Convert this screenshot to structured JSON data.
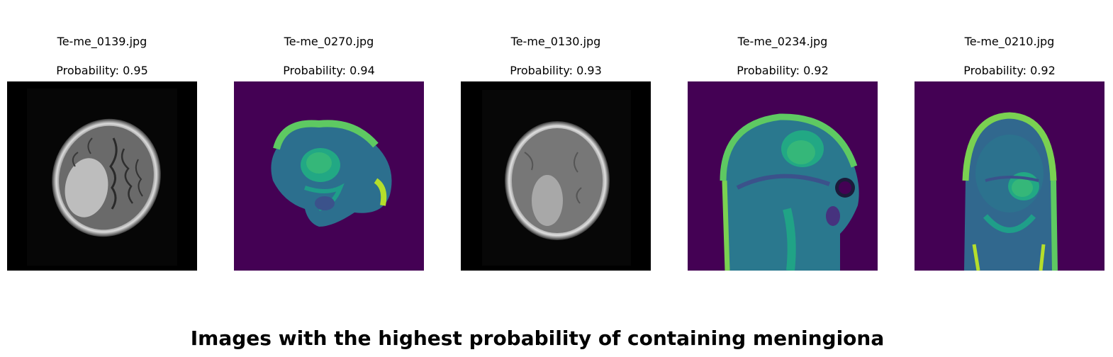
{
  "panels": [
    {
      "filename": "Te-me_0139.jpg",
      "probability_label": "Probability: 0.95",
      "colormap": "gray",
      "view": "axial-upper-a"
    },
    {
      "filename": "Te-me_0270.jpg",
      "probability_label": "Probability: 0.94",
      "colormap": "viridis",
      "view": "oblique"
    },
    {
      "filename": "Te-me_0130.jpg",
      "probability_label": "Probability: 0.93",
      "colormap": "gray",
      "view": "axial-upper-b"
    },
    {
      "filename": "Te-me_0234.jpg",
      "probability_label": "Probability: 0.92",
      "colormap": "viridis",
      "view": "sagittal"
    },
    {
      "filename": "Te-me_0210.jpg",
      "probability_label": "Probability: 0.92",
      "colormap": "viridis",
      "view": "coronal"
    }
  ],
  "footer_title": "Images with the highest probability of containing meningiona"
}
